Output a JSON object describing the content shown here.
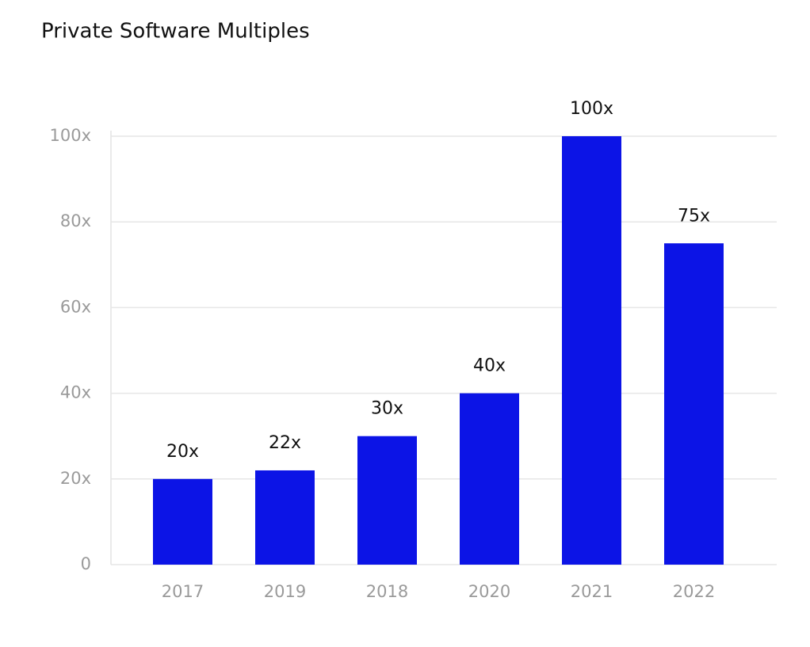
{
  "chart_data": {
    "type": "bar",
    "title": "Private Software Multiples",
    "categories": [
      "2017",
      "2019",
      "2018",
      "2020",
      "2021",
      "2022"
    ],
    "values": [
      20,
      22,
      30,
      40,
      100,
      75
    ],
    "value_labels": [
      "20x",
      "22x",
      "30x",
      "40x",
      "100x",
      "75x"
    ],
    "color": "#0c14e6",
    "ylim": [
      0,
      100
    ],
    "yticks": [
      0,
      {
        "value": 20,
        "label": "20x"
      },
      {
        "value": 40,
        "label": "40x"
      },
      {
        "value": 60,
        "label": "60x"
      },
      {
        "value": 80,
        "label": "80x"
      },
      {
        "value": 100,
        "label": "100x"
      }
    ],
    "grid": true
  }
}
